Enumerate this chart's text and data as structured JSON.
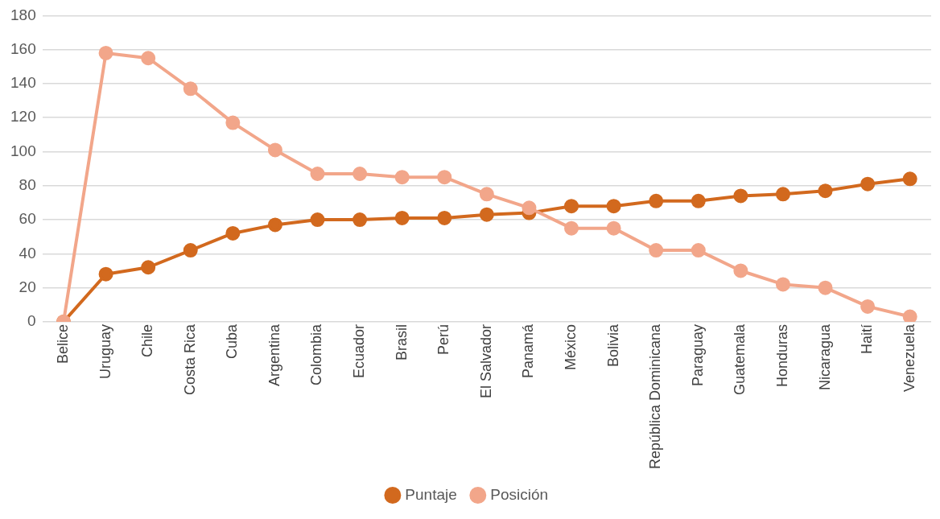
{
  "chart_data": {
    "type": "line",
    "categories": [
      "Belice",
      "Uruguay",
      "Chile",
      "Costa Rica",
      "Cuba",
      "Argentina",
      "Colombia",
      "Ecuador",
      "Brasil",
      "Perú",
      "El Salvador",
      "Panamá",
      "México",
      "Bolivia",
      "República Dominicana",
      "Paraguay",
      "Guatemala",
      "Honduras",
      "Nicaragua",
      "Haití",
      "Venezuela"
    ],
    "series": [
      {
        "name": "Puntaje",
        "color": "#d2691e",
        "values": [
          0,
          28,
          32,
          42,
          52,
          57,
          60,
          60,
          61,
          61,
          63,
          64,
          68,
          68,
          71,
          71,
          74,
          75,
          77,
          81,
          84
        ]
      },
      {
        "name": "Posición",
        "color": "#f2a68a",
        "values": [
          0,
          158,
          155,
          137,
          117,
          101,
          87,
          87,
          85,
          85,
          75,
          67,
          55,
          55,
          42,
          42,
          30,
          22,
          20,
          9,
          3
        ]
      }
    ],
    "ylim": [
      0,
      180
    ],
    "yticks": [
      0,
      20,
      40,
      60,
      80,
      100,
      120,
      140,
      160,
      180
    ],
    "grid": "y",
    "legend": "bottom",
    "marker": "circle",
    "line_style": "solid"
  }
}
